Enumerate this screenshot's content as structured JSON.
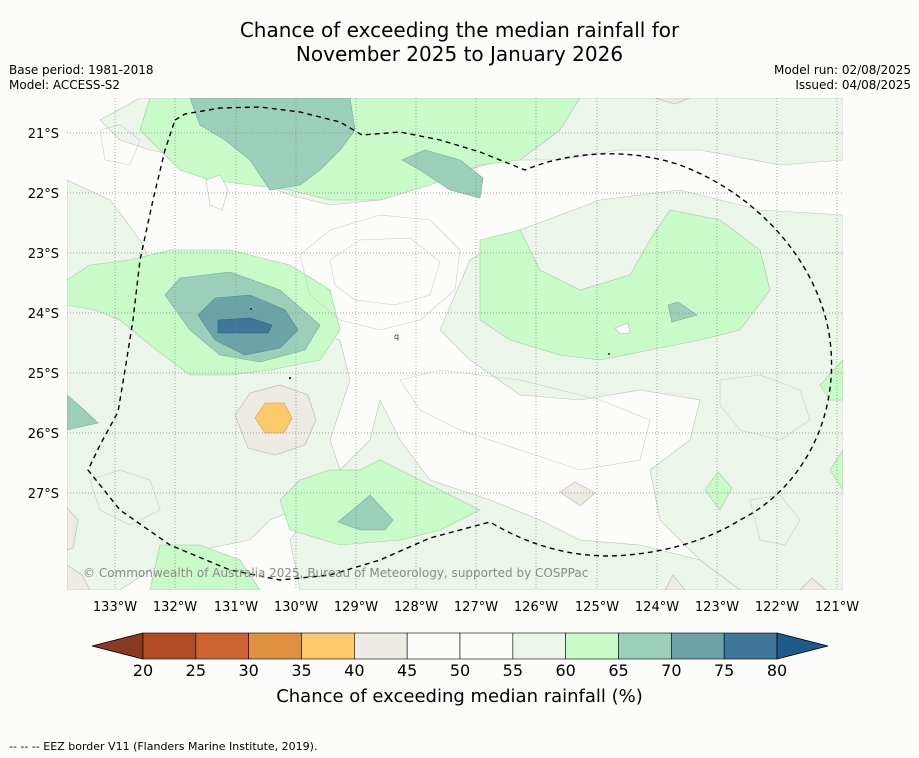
{
  "header": {
    "title_line1": "Chance of exceeding the median rainfall for",
    "title_line2": "November 2025 to January 2026",
    "base_period": "Base period: 1981-2018",
    "model": "Model: ACCESS-S2",
    "model_run": "Model run: 02/08/2025",
    "issued": "Issued: 04/08/2025"
  },
  "map": {
    "lon_labels": [
      "133°W",
      "132°W",
      "131°W",
      "130°W",
      "129°W",
      "128°W",
      "127°W",
      "126°W",
      "125°W",
      "124°W",
      "123°W",
      "122°W",
      "121°W"
    ],
    "lat_labels": [
      "21°S",
      "22°S",
      "23°S",
      "24°S",
      "25°S",
      "26°S",
      "27°S"
    ],
    "copyright": "© Commonwealth of Australia 2025, Bureau of Meteorology, supported by COSPPac",
    "contour_label": "q"
  },
  "colorbar": {
    "ticks": [
      "20",
      "25",
      "30",
      "35",
      "40",
      "45",
      "50",
      "55",
      "60",
      "65",
      "70",
      "75",
      "80"
    ],
    "colors": [
      "#b24a26",
      "#cd6330",
      "#e0913f",
      "#fdc96a",
      "#eeebe5",
      "#fcfdfb",
      "#fcfdfb",
      "#ecf5ea",
      "#c9fbc9",
      "#9ccfb9",
      "#6ba3a7",
      "#3e7799"
    ],
    "under_color": "#8a3a22",
    "over_color": "#1e5a8c",
    "title": "Chance of exceeding median rainfall (%)"
  },
  "footnote": "--  --  -- EEZ border V11 (Flanders Marine Institute, 2019)."
}
